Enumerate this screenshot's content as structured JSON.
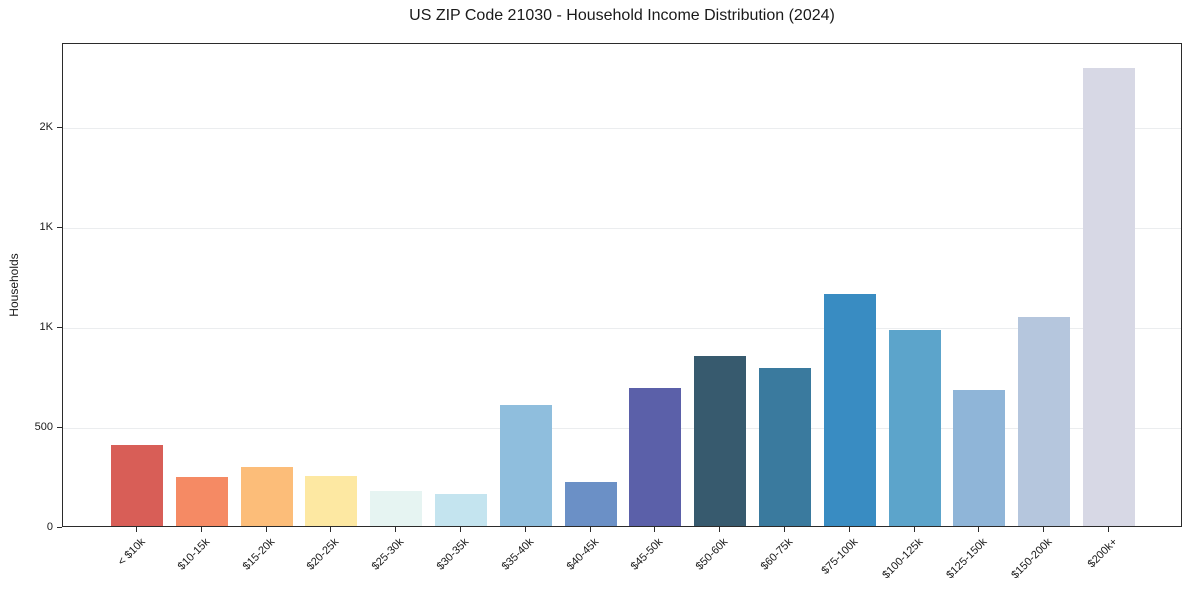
{
  "chart_data": {
    "type": "bar",
    "title": "US ZIP Code 21030 - Household Income Distribution (2024)",
    "xlabel": "",
    "ylabel": "Households",
    "categories": [
      "< $10k",
      "$10-15k",
      "$15-20k",
      "$20-25k",
      "$25-30k",
      "$30-35k",
      "$35-40k",
      "$40-45k",
      "$45-50k",
      "$50-60k",
      "$60-75k",
      "$75-100k",
      "$100-125k",
      "$125-150k",
      "$150-200k",
      "$200k+"
    ],
    "values": [
      405,
      245,
      295,
      250,
      175,
      160,
      605,
      220,
      690,
      850,
      790,
      1160,
      980,
      680,
      1045,
      2290
    ],
    "bar_colors": [
      "#d85e57",
      "#f58a64",
      "#fcbd79",
      "#fde8a2",
      "#e6f4f2",
      "#c4e4ef",
      "#8fbedd",
      "#6b90c6",
      "#5b60a9",
      "#375a6e",
      "#3a7a9e",
      "#398cc2",
      "#5ca4cb",
      "#8fb5d8",
      "#b5c6dd",
      "#d7d8e5"
    ],
    "yticks": {
      "values": [
        0,
        500,
        1000,
        1500,
        2000
      ],
      "labels": [
        "0",
        "500",
        "1K",
        "1K",
        "2K"
      ]
    },
    "ylim": [
      0,
      2420
    ],
    "grid": "horizontal",
    "legend": "none",
    "x_tick_rotation_deg": 45
  },
  "style": {
    "axis_color": "#2b2b2b",
    "grid_color": "#ebedef",
    "text_color": "#1a1a1a",
    "background": "#ffffff"
  }
}
